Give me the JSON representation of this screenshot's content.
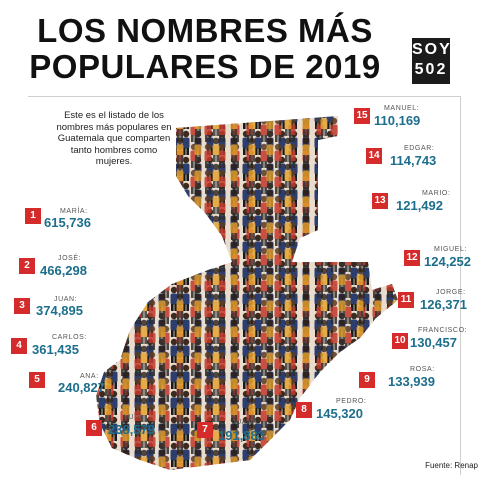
{
  "title_line1": "LOS NOMBRES MÁS",
  "title_line2": "POPULARES DE 2019",
  "logo": {
    "line1": "SOY",
    "line2": "502"
  },
  "intro": "Este es el listado de los nombres más populares en Guatemala que comparten tanto hombres como mujeres.",
  "ranking": [
    {
      "rank": "1",
      "name": "MARÍA:",
      "value": "615,736"
    },
    {
      "rank": "2",
      "name": "JOSÉ:",
      "value": "466,298"
    },
    {
      "rank": "3",
      "name": "JUAN:",
      "value": "374,895"
    },
    {
      "rank": "4",
      "name": "CARLOS:",
      "value": "361,435"
    },
    {
      "rank": "5",
      "name": "ANA:",
      "value": "240,827"
    },
    {
      "rank": "6",
      "name": "LUIS:",
      "value": "238,579"
    },
    {
      "rank": "7",
      "name": "JUANA:",
      "value": "191,883"
    },
    {
      "rank": "8",
      "name": "PEDRO:",
      "value": "145,320"
    },
    {
      "rank": "9",
      "name": "ROSA:",
      "value": "133,939"
    },
    {
      "rank": "10",
      "name": "FRANCISCO:",
      "value": "130,457"
    },
    {
      "rank": "11",
      "name": "JORGE:",
      "value": "126,371"
    },
    {
      "rank": "12",
      "name": "MIGUEL:",
      "value": "124,252"
    },
    {
      "rank": "13",
      "name": "MARIO:",
      "value": "121,492"
    },
    {
      "rank": "14",
      "name": "EDGAR:",
      "value": "114,743"
    },
    {
      "rank": "15",
      "name": "MANUEL:",
      "value": "110,169"
    }
  ],
  "source": "Fuente: Renap",
  "colors": {
    "accent_red": "#d62b2b",
    "value_blue": "#1d6e8c"
  }
}
